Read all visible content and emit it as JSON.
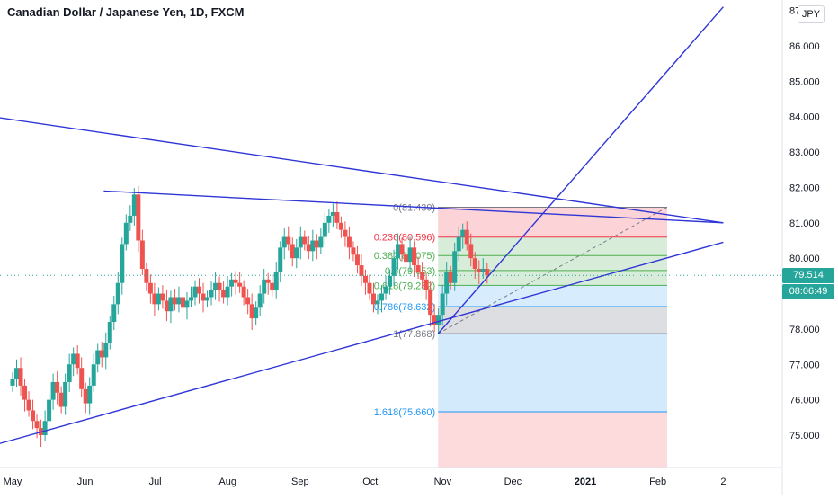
{
  "title": "Canadian Dollar / Japanese Yen, 1D, FXCM",
  "currency": "JPY",
  "price_tags": {
    "last_price": "79.514",
    "countdown": "08:06:49"
  },
  "colors": {
    "up": "#26a69a",
    "down": "#ef5350",
    "trendline": "#2f36d6",
    "fib_red": "#f23645",
    "fib_green": "#4caf50",
    "fib_blue": "#2196f3",
    "fib_gray": "#787b86"
  },
  "chart_data": {
    "type": "candlestick",
    "instrument": "CADJPY",
    "timeframe": "1D",
    "y_axis": {
      "ticks": [
        "75.000",
        "76.000",
        "77.000",
        "78.000",
        "79.000",
        "80.000",
        "81.000",
        "82.000",
        "83.000",
        "84.000",
        "85.000",
        "86.000",
        "87.000"
      ],
      "range": [
        74.4,
        87.2
      ]
    },
    "x_axis": {
      "ticks": [
        "May",
        "Jun",
        "Jul",
        "Aug",
        "Sep",
        "Oct",
        "Nov",
        "Dec",
        "2021",
        "Feb",
        "2"
      ]
    },
    "candles_close": [
      76.6,
      76.9,
      76.4,
      76.0,
      75.7,
      75.4,
      75.2,
      75.0,
      75.4,
      76.0,
      76.5,
      76.2,
      75.8,
      76.5,
      77.0,
      77.3,
      76.9,
      76.3,
      75.9,
      76.4,
      77.0,
      77.4,
      77.2,
      77.6,
      78.2,
      78.7,
      79.3,
      80.4,
      81.0,
      81.2,
      81.8,
      80.5,
      79.7,
      79.3,
      79.0,
      78.7,
      79.0,
      78.8,
      78.5,
      78.9,
      78.7,
      78.9,
      78.6,
      78.8,
      78.9,
      79.2,
      79.0,
      78.8,
      78.9,
      79.1,
      79.3,
      79.1,
      78.9,
      79.2,
      79.4,
      79.3,
      79.2,
      78.9,
      78.7,
      78.3,
      78.6,
      79.0,
      79.4,
      79.3,
      79.1,
      79.6,
      80.3,
      80.6,
      80.4,
      80.0,
      80.3,
      80.6,
      80.4,
      80.2,
      80.5,
      80.3,
      80.6,
      81.0,
      81.2,
      81.3,
      81.0,
      80.8,
      80.6,
      80.3,
      80.1,
      79.8,
      79.5,
      79.3,
      79.0,
      78.7,
      78.8,
      79.0,
      79.2,
      79.5,
      80.0,
      80.4,
      80.1,
      79.9,
      80.3,
      79.8,
      79.6,
      79.4,
      79.1,
      78.4,
      78.1,
      78.4,
      79.0,
      79.6,
      79.3,
      80.2,
      80.6,
      80.8,
      80.4,
      80.0,
      79.7,
      79.6,
      79.7,
      79.514
    ],
    "trendlines": [
      {
        "name": "upper-descending",
        "from": [
          "2020-04-22",
          84.0
        ],
        "to": [
          "2021-03-01",
          81.0
        ]
      },
      {
        "name": "upper-flat",
        "from": [
          "2020-06-09",
          81.9
        ],
        "to": [
          "2021-03-01",
          81.0
        ]
      },
      {
        "name": "lower-ascending",
        "from": [
          "2020-04-22",
          74.7
        ],
        "to": [
          "2021-03-01",
          80.45
        ]
      },
      {
        "name": "steep-ascending",
        "from": [
          "2020-10-30",
          77.868
        ],
        "to": [
          "2021-03-01",
          87.1
        ]
      }
    ],
    "fibonacci": {
      "levels": [
        {
          "ratio": "0",
          "label": "0(81.439)",
          "price": 81.439,
          "color": "gray"
        },
        {
          "ratio": "0.236",
          "label": "0.236(80.596)",
          "price": 80.596,
          "color": "red"
        },
        {
          "ratio": "0.382",
          "label": "0.382(80.075)",
          "price": 80.075,
          "color": "green"
        },
        {
          "ratio": "0.5",
          "label": "0.5(79.653)",
          "price": 79.653,
          "color": "green"
        },
        {
          "ratio": "0.618",
          "label": "0.618(79.232)",
          "price": 79.232,
          "color": "green"
        },
        {
          "ratio": "0.786",
          "label": "0.786(78.632)",
          "price": 78.632,
          "color": "blue"
        },
        {
          "ratio": "1",
          "label": "1(77.868)",
          "price": 77.868,
          "color": "gray"
        },
        {
          "ratio": "1.618",
          "label": "1.618(75.660)",
          "price": 75.66,
          "color": "blue"
        }
      ],
      "from_date": "2020-10-30",
      "to_date": "2021-02-05"
    },
    "last_price": 79.514
  }
}
